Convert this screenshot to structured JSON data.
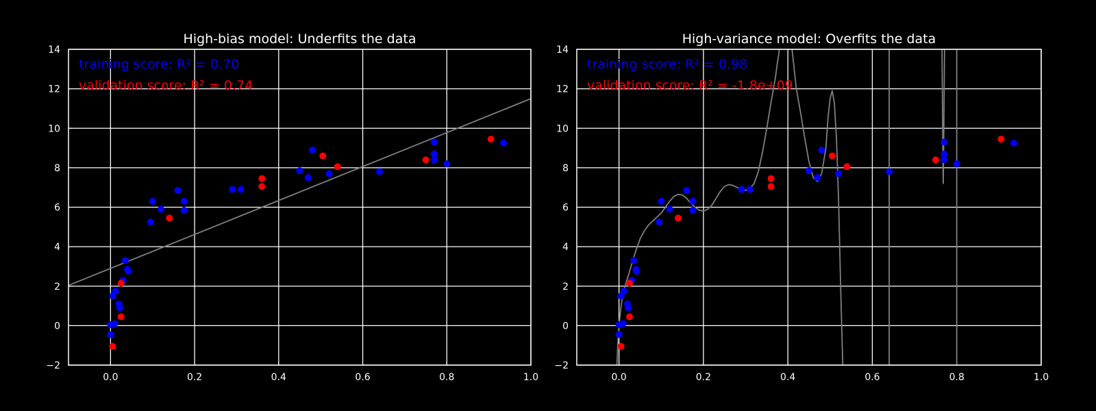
{
  "chart_data": [
    {
      "type": "scatter",
      "title": "High-bias model: Underfits the data",
      "xlim": [
        -0.1,
        1.0
      ],
      "ylim": [
        -2,
        14
      ],
      "xticks": [
        "0.0",
        "0.2",
        "0.4",
        "0.6",
        "0.8",
        "1.0"
      ],
      "yticks": [
        "−2",
        "0",
        "2",
        "4",
        "6",
        "8",
        "10",
        "12",
        "14"
      ],
      "grid": true,
      "annotations": [
        {
          "text": "training score: R² = 0.70",
          "color": "#0000ff"
        },
        {
          "text": "validation score: R² = 0.74",
          "color": "#ff0000"
        }
      ],
      "series": [
        {
          "color": "#0000ff",
          "points": [
            [
              0.0,
              0.05
            ],
            [
              0.0,
              -0.45
            ],
            [
              0.005,
              1.5
            ],
            [
              0.01,
              0.1
            ],
            [
              0.012,
              1.75
            ],
            [
              0.02,
              1.1
            ],
            [
              0.022,
              0.9
            ],
            [
              0.03,
              2.3
            ],
            [
              0.035,
              3.3
            ],
            [
              0.04,
              2.85
            ],
            [
              0.042,
              2.75
            ],
            [
              0.095,
              5.25
            ],
            [
              0.1,
              6.3
            ],
            [
              0.12,
              5.9
            ],
            [
              0.16,
              6.85
            ],
            [
              0.175,
              6.3
            ],
            [
              0.175,
              5.85
            ],
            [
              0.29,
              6.9
            ],
            [
              0.31,
              6.9
            ],
            [
              0.45,
              7.85
            ],
            [
              0.47,
              7.5
            ],
            [
              0.48,
              8.9
            ],
            [
              0.52,
              7.7
            ],
            [
              0.64,
              7.8
            ],
            [
              0.77,
              9.3
            ],
            [
              0.77,
              8.7
            ],
            [
              0.77,
              8.4
            ],
            [
              0.8,
              8.2
            ],
            [
              0.935,
              9.25
            ]
          ]
        },
        {
          "color": "#ff0000",
          "points": [
            [
              0.005,
              -1.05
            ],
            [
              0.025,
              2.15
            ],
            [
              0.025,
              0.45
            ],
            [
              0.14,
              5.45
            ],
            [
              0.36,
              7.45
            ],
            [
              0.36,
              7.05
            ],
            [
              0.505,
              8.6
            ],
            [
              0.54,
              8.05
            ],
            [
              0.75,
              8.4
            ],
            [
              0.905,
              9.45
            ]
          ]
        }
      ],
      "fit": {
        "color": "#808080",
        "kind": "linear",
        "slope": 8.6,
        "intercept": 2.9
      }
    },
    {
      "type": "scatter",
      "title": "High-variance model: Overfits the data",
      "xlim": [
        -0.1,
        1.0
      ],
      "ylim": [
        -2,
        14
      ],
      "xticks": [
        "0.0",
        "0.2",
        "0.4",
        "0.6",
        "0.8",
        "1.0"
      ],
      "yticks": [
        "−2",
        "0",
        "2",
        "4",
        "6",
        "8",
        "10",
        "12",
        "14"
      ],
      "grid": true,
      "annotations": [
        {
          "text": "training score: R² = 0.98",
          "color": "#0000ff"
        },
        {
          "text": "validation score: R² = -1.8e+09",
          "color": "#ff0000"
        }
      ],
      "series": [
        {
          "color": "#0000ff",
          "points": [
            [
              0.0,
              0.05
            ],
            [
              0.0,
              -0.45
            ],
            [
              0.005,
              1.5
            ],
            [
              0.01,
              0.1
            ],
            [
              0.012,
              1.75
            ],
            [
              0.02,
              1.1
            ],
            [
              0.022,
              0.9
            ],
            [
              0.03,
              2.3
            ],
            [
              0.035,
              3.3
            ],
            [
              0.04,
              2.85
            ],
            [
              0.042,
              2.75
            ],
            [
              0.095,
              5.25
            ],
            [
              0.1,
              6.3
            ],
            [
              0.12,
              5.9
            ],
            [
              0.16,
              6.85
            ],
            [
              0.175,
              6.3
            ],
            [
              0.175,
              5.85
            ],
            [
              0.29,
              6.9
            ],
            [
              0.31,
              6.9
            ],
            [
              0.45,
              7.85
            ],
            [
              0.47,
              7.5
            ],
            [
              0.48,
              8.9
            ],
            [
              0.52,
              7.7
            ],
            [
              0.64,
              7.8
            ],
            [
              0.77,
              9.3
            ],
            [
              0.77,
              8.7
            ],
            [
              0.77,
              8.4
            ],
            [
              0.8,
              8.2
            ],
            [
              0.935,
              9.25
            ]
          ]
        },
        {
          "color": "#ff0000",
          "points": [
            [
              0.005,
              -1.05
            ],
            [
              0.025,
              2.15
            ],
            [
              0.025,
              0.45
            ],
            [
              0.14,
              5.45
            ],
            [
              0.36,
              7.45
            ],
            [
              0.36,
              7.05
            ],
            [
              0.505,
              8.6
            ],
            [
              0.54,
              8.05
            ],
            [
              0.75,
              8.4
            ],
            [
              0.905,
              9.45
            ]
          ]
        }
      ],
      "fit": {
        "color": "#808080",
        "kind": "curve",
        "segments": [
          [
            [
              -0.005,
              -2.0
            ],
            [
              -0.003,
              -1.0
            ],
            [
              0.0,
              0.0
            ],
            [
              0.005,
              1.0
            ],
            [
              0.01,
              1.7
            ],
            [
              0.02,
              2.4
            ],
            [
              0.03,
              3.1
            ],
            [
              0.04,
              3.8
            ],
            [
              0.05,
              4.4
            ],
            [
              0.06,
              4.8
            ],
            [
              0.07,
              5.1
            ],
            [
              0.08,
              5.3
            ],
            [
              0.09,
              5.5
            ],
            [
              0.1,
              5.7
            ],
            [
              0.11,
              6.0
            ],
            [
              0.12,
              6.3
            ],
            [
              0.13,
              6.55
            ],
            [
              0.14,
              6.65
            ],
            [
              0.15,
              6.62
            ],
            [
              0.16,
              6.45
            ],
            [
              0.17,
              6.2
            ],
            [
              0.18,
              6.0
            ],
            [
              0.19,
              5.85
            ],
            [
              0.2,
              5.8
            ],
            [
              0.21,
              5.9
            ],
            [
              0.22,
              6.1
            ],
            [
              0.23,
              6.45
            ],
            [
              0.24,
              6.8
            ],
            [
              0.25,
              7.05
            ],
            [
              0.26,
              7.15
            ],
            [
              0.27,
              7.1
            ],
            [
              0.28,
              7.0
            ],
            [
              0.29,
              6.9
            ],
            [
              0.3,
              6.85
            ],
            [
              0.31,
              6.95
            ],
            [
              0.32,
              7.2
            ],
            [
              0.33,
              7.8
            ],
            [
              0.34,
              8.8
            ],
            [
              0.35,
              10.0
            ],
            [
              0.36,
              11.3
            ],
            [
              0.37,
              12.5
            ],
            [
              0.375,
              13.3
            ],
            [
              0.38,
              14.0
            ]
          ],
          [
            [
              0.41,
              14.0
            ],
            [
              0.415,
              13.0
            ],
            [
              0.42,
              12.0
            ],
            [
              0.43,
              10.8
            ],
            [
              0.44,
              9.5
            ],
            [
              0.45,
              8.3
            ],
            [
              0.46,
              7.5
            ],
            [
              0.47,
              7.3
            ],
            [
              0.48,
              7.7
            ],
            [
              0.49,
              9.0
            ],
            [
              0.495,
              10.5
            ],
            [
              0.5,
              11.5
            ],
            [
              0.505,
              11.9
            ],
            [
              0.51,
              11.3
            ],
            [
              0.515,
              9.5
            ],
            [
              0.52,
              6.5
            ],
            [
              0.525,
              2.0
            ],
            [
              0.53,
              -2.0
            ]
          ],
          [
            [
              0.64,
              -2.0
            ],
            [
              0.64,
              14.0
            ]
          ],
          [
            [
              0.765,
              14.0
            ],
            [
              0.767,
              9.0
            ],
            [
              0.768,
              7.2
            ],
            [
              0.769,
              9.0
            ],
            [
              0.771,
              14.0
            ]
          ],
          [
            [
              0.8,
              -2.0
            ],
            [
              0.8,
              14.0
            ]
          ]
        ]
      }
    }
  ]
}
